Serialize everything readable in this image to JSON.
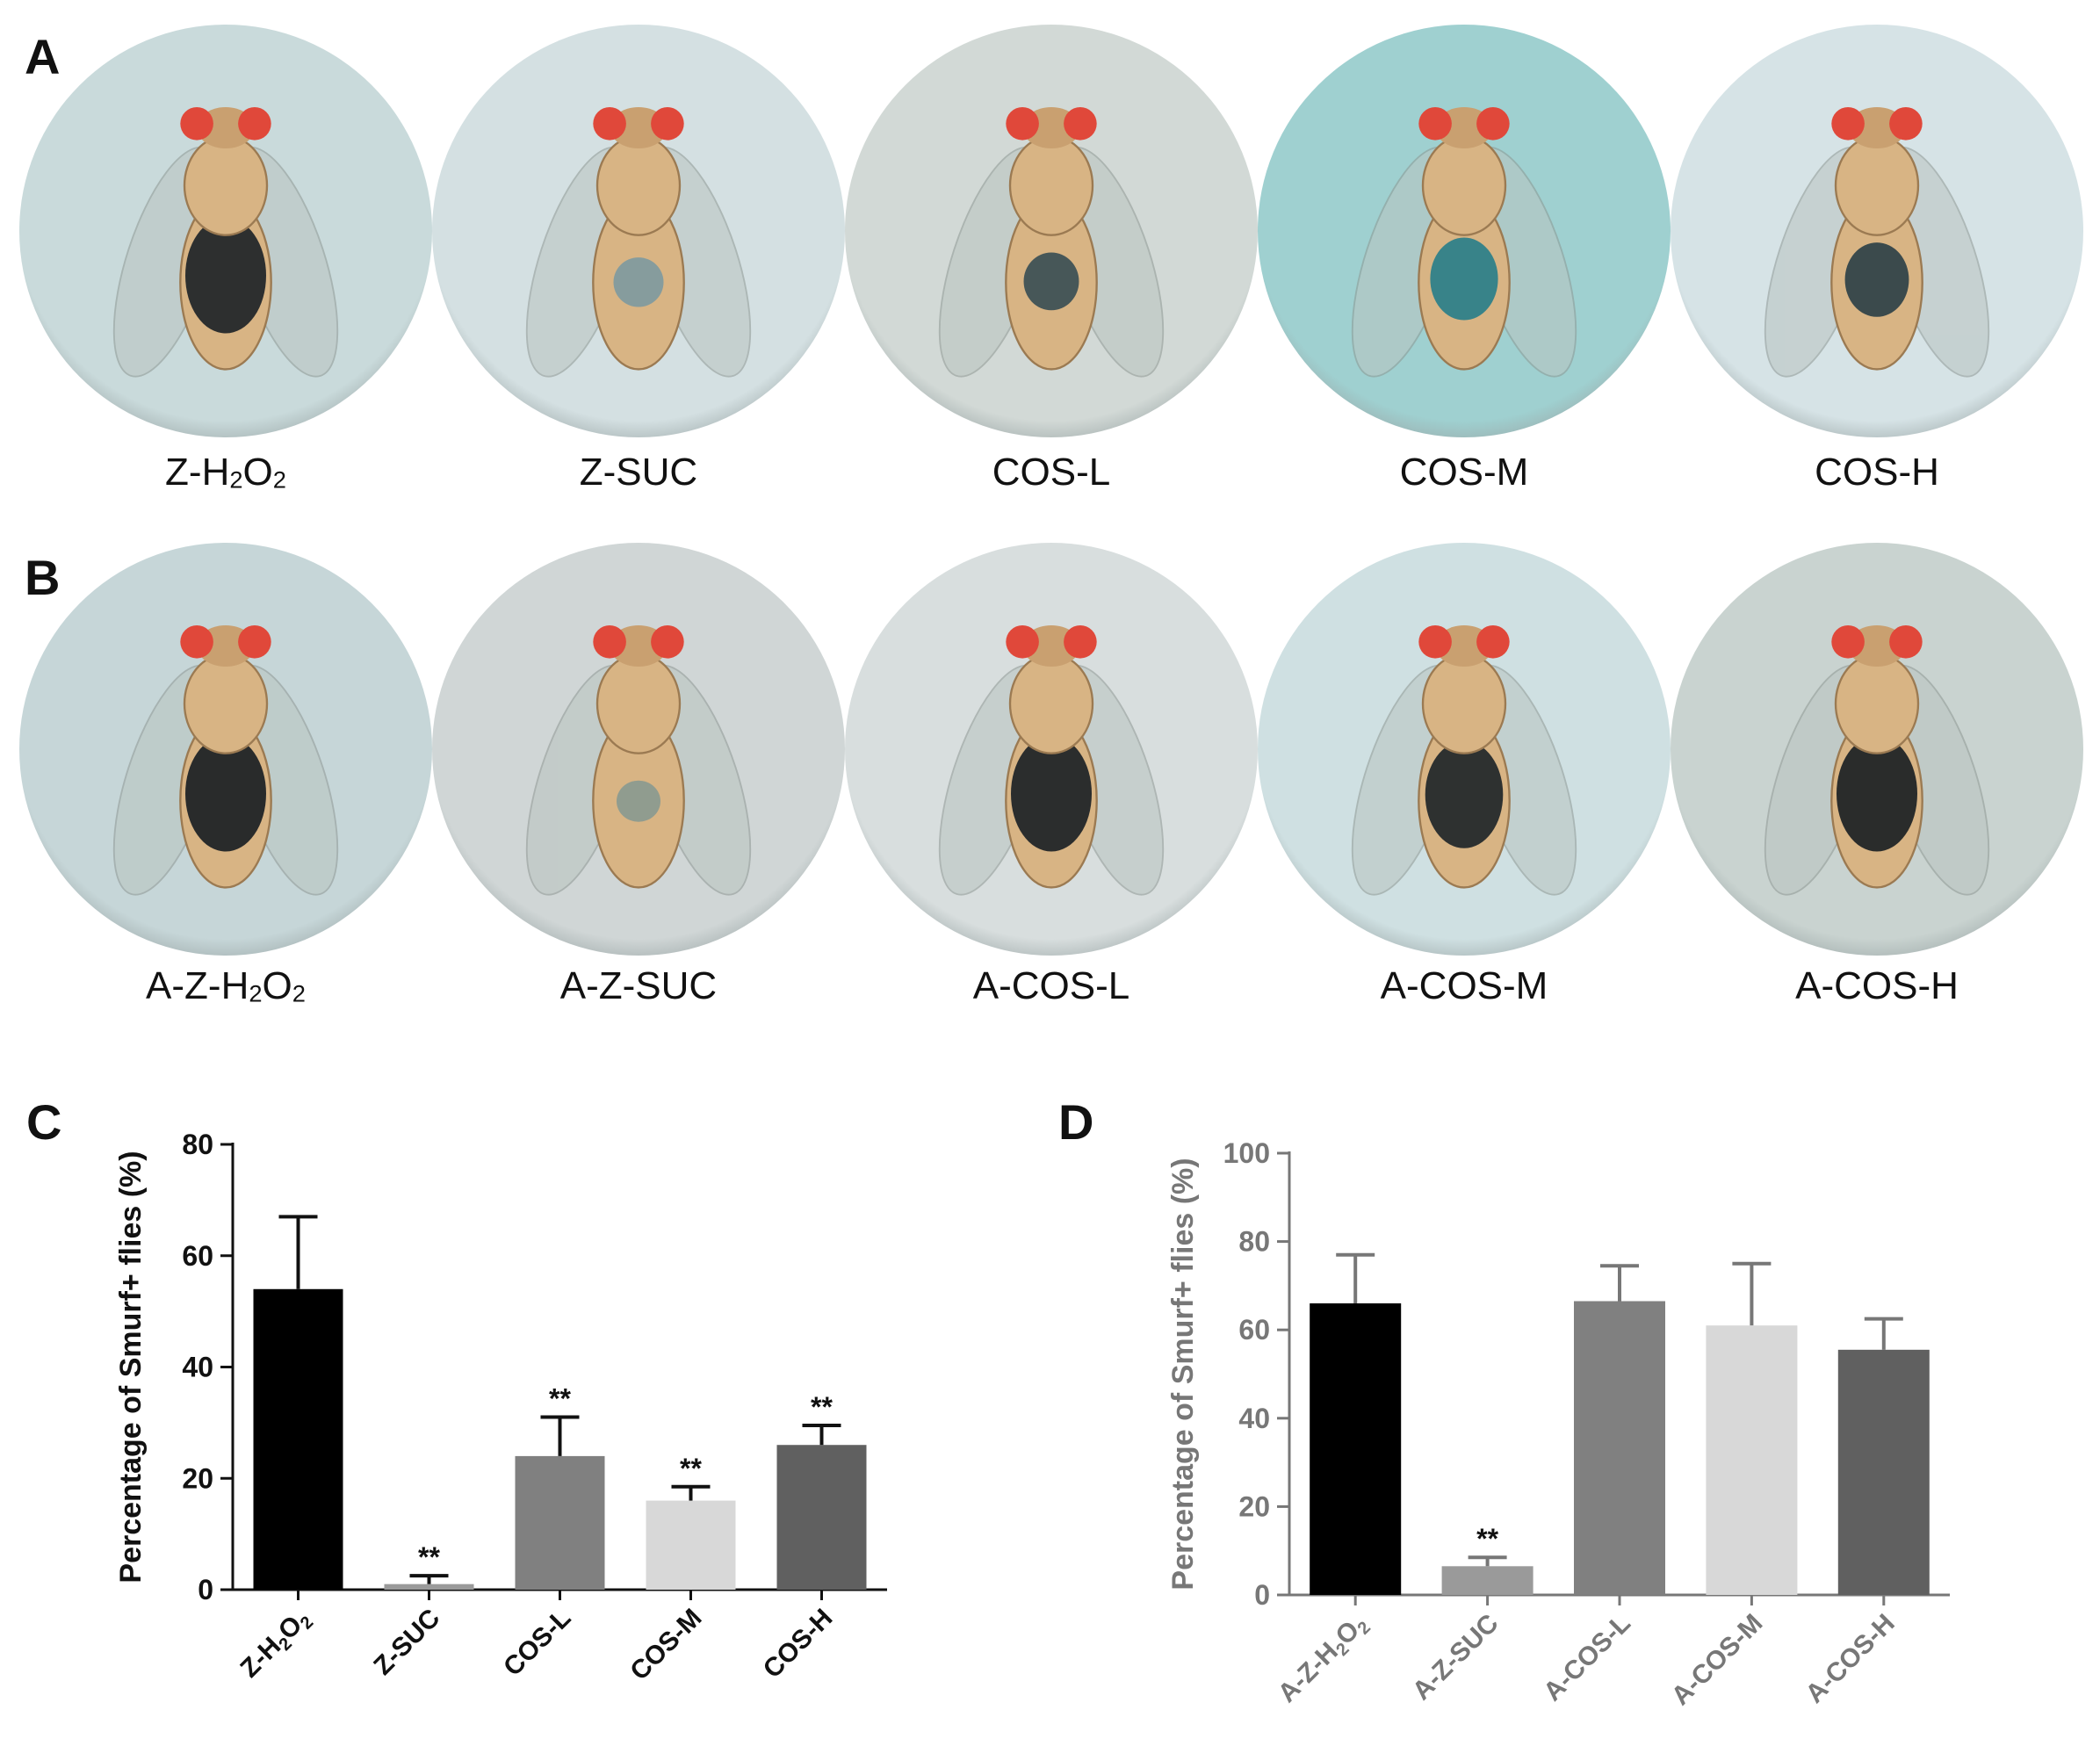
{
  "panels": {
    "a": {
      "letter": "A",
      "photos": [
        {
          "label_main": "Z-H",
          "sub1": "2",
          "mid": "O",
          "sub2": "2",
          "abdomen_color": "#1e2428",
          "abdomen_fraction": 0.55,
          "background": "#c9dadb"
        },
        {
          "label_main": "Z-SUC",
          "sub1": "",
          "mid": "",
          "sub2": "",
          "abdomen_color": "#7f9aa0",
          "abdomen_fraction": 0.15,
          "background": "#d4e0e2"
        },
        {
          "label_main": "COS-L",
          "sub1": "",
          "mid": "",
          "sub2": "",
          "abdomen_color": "#3b4f55",
          "abdomen_fraction": 0.2,
          "background": "#d2d9d6"
        },
        {
          "label_main": "COS-M",
          "sub1": "",
          "mid": "",
          "sub2": "",
          "abdomen_color": "#2a7f8a",
          "abdomen_fraction": 0.35,
          "background": "#9fd0d0"
        },
        {
          "label_main": "COS-H",
          "sub1": "",
          "mid": "",
          "sub2": "",
          "abdomen_color": "#2e4148",
          "abdomen_fraction": 0.3,
          "background": "#d6e3e6"
        }
      ]
    },
    "b": {
      "letter": "B",
      "photos": [
        {
          "label_main": "A-Z-H",
          "sub1": "2",
          "mid": "O",
          "sub2": "2",
          "abdomen_color": "#1a2024",
          "abdomen_fraction": 0.55,
          "background": "#c6d6d8"
        },
        {
          "label_main": "A-Z-SUC",
          "sub1": "",
          "mid": "",
          "sub2": "",
          "abdomen_color": "#8a9a90",
          "abdomen_fraction": 0.1,
          "background": "#d0d6d6"
        },
        {
          "label_main": "A-COS-L",
          "sub1": "",
          "mid": "",
          "sub2": "",
          "abdomen_color": "#1c2226",
          "abdomen_fraction": 0.55,
          "background": "#d8dede"
        },
        {
          "label_main": "A-COS-M",
          "sub1": "",
          "mid": "",
          "sub2": "",
          "abdomen_color": "#1f2629",
          "abdomen_fraction": 0.5,
          "background": "#cfe0e2"
        },
        {
          "label_main": "A-COS-H",
          "sub1": "",
          "mid": "",
          "sub2": "",
          "abdomen_color": "#1b2124",
          "abdomen_fraction": 0.55,
          "background": "#c9d3d0"
        }
      ]
    },
    "c_letter": "C",
    "d_letter": "D"
  },
  "colors": {
    "fly_body": "#d8b484",
    "fly_eye": "#e0483a",
    "wing": "#b9c4c0"
  },
  "chart_data": [
    {
      "type": "bar",
      "panel": "C",
      "categories": [
        "Z-H2O2",
        "Z-SUC",
        "COS-L",
        "COS-M",
        "COS-H"
      ],
      "tick_labels": [
        {
          "main": "Z-H",
          "sub1": "2",
          "mid": "O",
          "sub2": "2"
        },
        {
          "main": "Z-SUC",
          "sub1": "",
          "mid": "",
          "sub2": ""
        },
        {
          "main": "COS-L",
          "sub1": "",
          "mid": "",
          "sub2": ""
        },
        {
          "main": "COS-M",
          "sub1": "",
          "mid": "",
          "sub2": ""
        },
        {
          "main": "COS-H",
          "sub1": "",
          "mid": "",
          "sub2": ""
        }
      ],
      "values": [
        54,
        1,
        24,
        16,
        26
      ],
      "errors": [
        13,
        1.5,
        7,
        2.5,
        3.5
      ],
      "significance": [
        "",
        "**",
        "**",
        "**",
        "**"
      ],
      "bar_colors": [
        "#000000",
        "#9a9a9a",
        "#808080",
        "#d8d8d8",
        "#606060"
      ],
      "ylabel": "Percentage of Smurf+ flies (%)",
      "yticks": [
        "0",
        "20",
        "40",
        "60",
        "80"
      ],
      "ylim": [
        0,
        80
      ],
      "axis_color": "#111111",
      "grid": false
    },
    {
      "type": "bar",
      "panel": "D",
      "categories": [
        "A-Z-H2O2",
        "A-Z-SUC",
        "A-COS-L",
        "A-COS-M",
        "A-COS-H"
      ],
      "tick_labels": [
        {
          "main": "A-Z-H",
          "sub1": "2",
          "mid": "O",
          "sub2": "2"
        },
        {
          "main": "A-Z-SUC",
          "sub1": "",
          "mid": "",
          "sub2": ""
        },
        {
          "main": "A-COS-L",
          "sub1": "",
          "mid": "",
          "sub2": ""
        },
        {
          "main": "A-COS-M",
          "sub1": "",
          "mid": "",
          "sub2": ""
        },
        {
          "main": "A-COS-H",
          "sub1": "",
          "mid": "",
          "sub2": ""
        }
      ],
      "values": [
        66,
        6.5,
        66.5,
        61,
        55.5
      ],
      "errors": [
        11,
        2,
        8,
        14,
        7
      ],
      "significance": [
        "",
        "**",
        "",
        "",
        ""
      ],
      "bar_colors": [
        "#000000",
        "#9a9a9a",
        "#808080",
        "#d8d8d8",
        "#606060"
      ],
      "ylabel": "Percentage of Smurf+ flies (%)",
      "yticks": [
        "0",
        "20",
        "40",
        "60",
        "80",
        "100"
      ],
      "ylim": [
        0,
        100
      ],
      "axis_color": "#777777",
      "grid": false
    }
  ]
}
